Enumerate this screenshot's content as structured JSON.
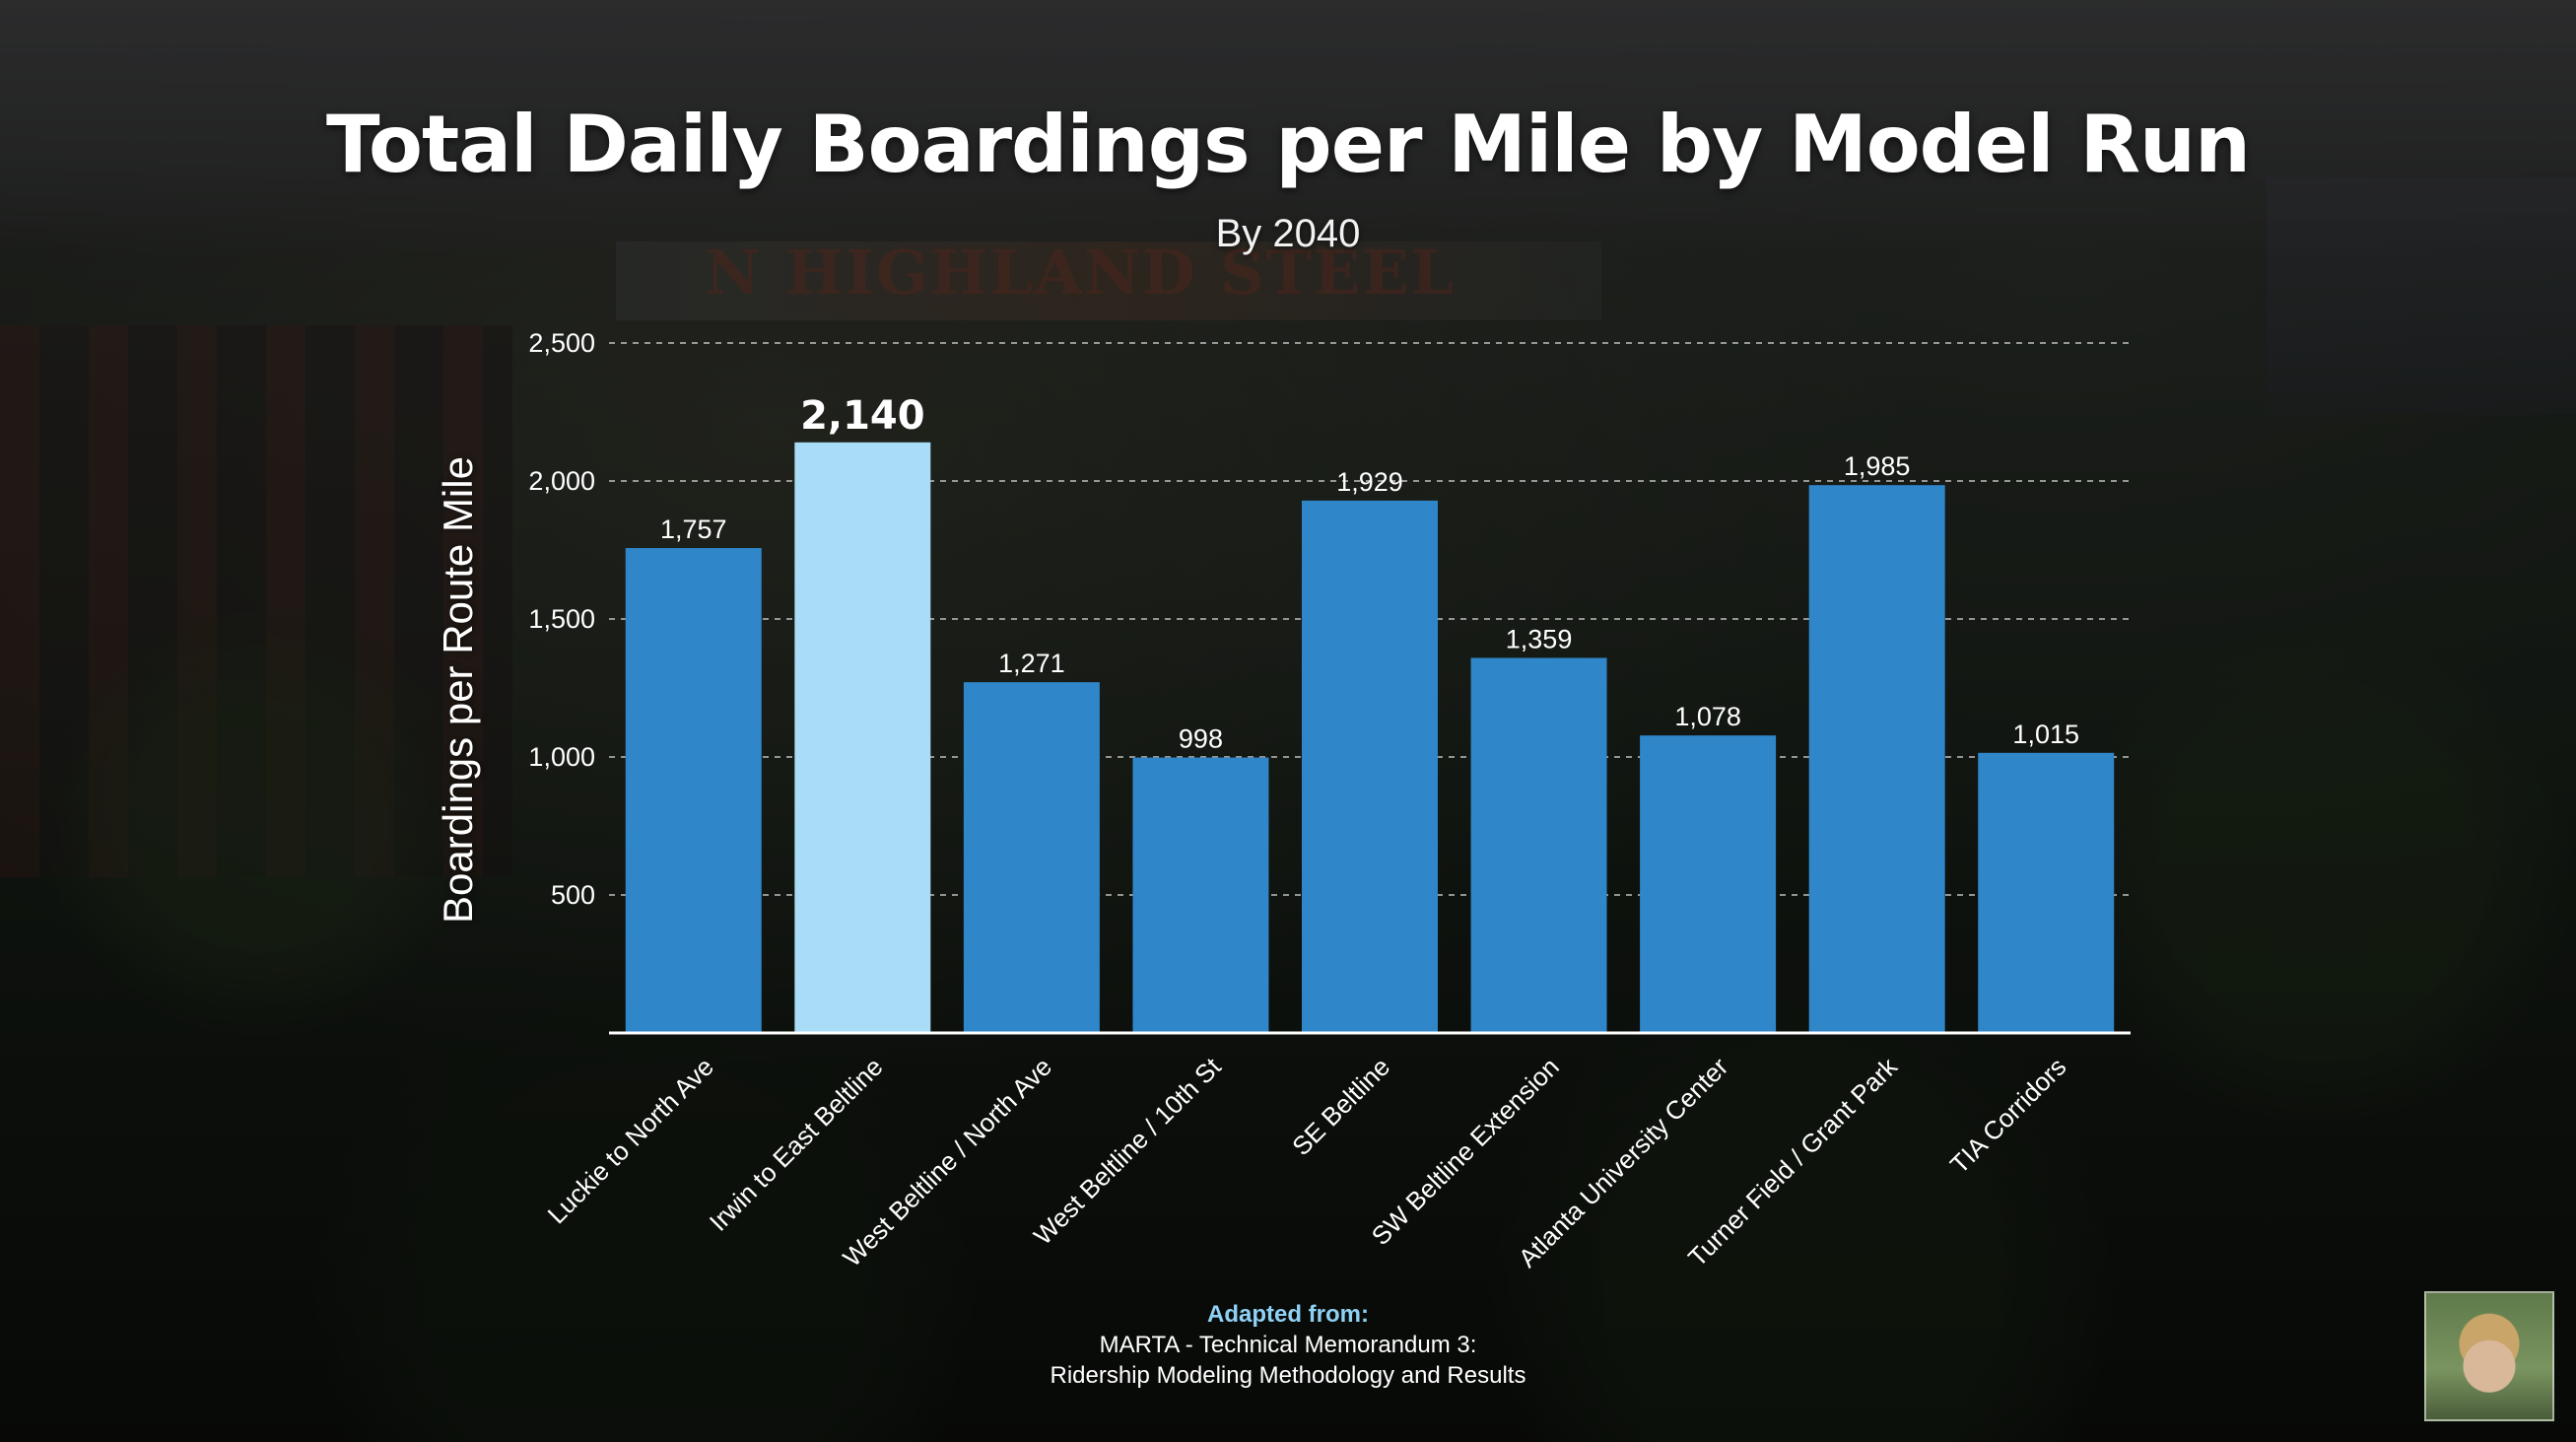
{
  "slide": {
    "title": "Total Daily Boardings per Mile by Model Run",
    "subtitle": "By 2040",
    "source_heading": "Adapted from:",
    "source_line1": "MARTA - Technical Memorandum 3:",
    "source_line2": "Ridership Modeling Methodology and Results",
    "background_sign": "N HIGHLAND STEEL"
  },
  "colors": {
    "bar": "#2f86c9",
    "bar_highlight": "#a8dcf7",
    "grid": "#bfbfbf",
    "axis": "#ffffff",
    "source_heading": "#8fd0f5"
  },
  "chart_data": {
    "type": "bar",
    "title": "Total Daily Boardings per Mile by Model Run",
    "subtitle": "By 2040",
    "xlabel": "",
    "ylabel": "Boardings per Route Mile",
    "ylim": [
      0,
      2500
    ],
    "yticks": [
      500,
      1000,
      1500,
      2000,
      2500
    ],
    "ytick_labels": [
      "500",
      "1,000",
      "1,500",
      "2,000",
      "2,500"
    ],
    "grid": true,
    "categories": [
      "Luckie to North Ave",
      "Irwin to East Beltline",
      "West Beltline / North Ave",
      "West Beltline / 10th St",
      "SE Beltline",
      "SW Beltline Extension",
      "Atlanta University Center",
      "Turner Field / Grant Park",
      "TIA Corridors"
    ],
    "values": [
      1757,
      2140,
      1271,
      998,
      1929,
      1359,
      1078,
      1985,
      1015
    ],
    "value_labels": [
      "1,757",
      "2,140",
      "1,271",
      "998",
      "1,929",
      "1,359",
      "1,078",
      "1,985",
      "1,015"
    ],
    "highlight": "Irwin to East Beltline"
  }
}
